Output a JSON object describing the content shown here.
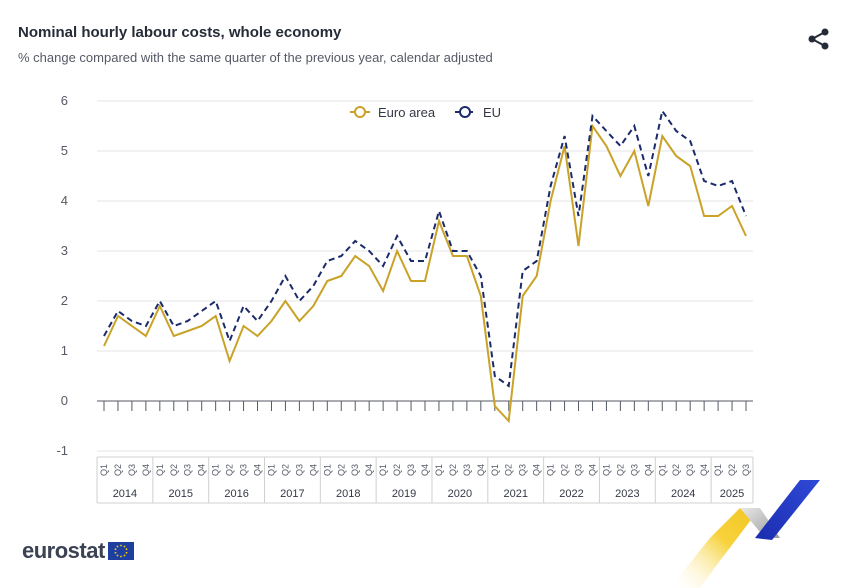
{
  "header": {
    "title": "Nominal hourly labour costs, whole economy",
    "subtitle": "% change compared with the same quarter of the previous year, calendar adjusted",
    "share_icon": "share-icon"
  },
  "brand": {
    "name": "eurostat",
    "flag_icon": "eu-flag-icon",
    "deco_icon": "eurostat-chevron-graphic"
  },
  "colors": {
    "euro_area": "#c9a227",
    "eu": "#1b2a6b",
    "grid": "#e6e6e6",
    "axis": "#555a66"
  },
  "chart_data": {
    "type": "line",
    "title": "Nominal hourly labour costs, whole economy",
    "subtitle": "% change compared with the same quarter of the previous year, calendar adjusted",
    "xlabel": "",
    "ylabel": "",
    "ylim": [
      -1,
      6
    ],
    "yticks": [
      "6",
      "5",
      "4",
      "3",
      "2",
      "1",
      "0",
      "-1"
    ],
    "grid": true,
    "legend_position": "top-center",
    "years": [
      "2014",
      "2015",
      "2016",
      "2017",
      "2018",
      "2019",
      "2020",
      "2021",
      "2022",
      "2023",
      "2024",
      "2025"
    ],
    "quarter_labels": [
      "Q1",
      "Q2",
      "Q3",
      "Q4"
    ],
    "categories": [
      "2014Q1",
      "2014Q2",
      "2014Q3",
      "2014Q4",
      "2015Q1",
      "2015Q2",
      "2015Q3",
      "2015Q4",
      "2016Q1",
      "2016Q2",
      "2016Q3",
      "2016Q4",
      "2017Q1",
      "2017Q2",
      "2017Q3",
      "2017Q4",
      "2018Q1",
      "2018Q2",
      "2018Q3",
      "2018Q4",
      "2019Q1",
      "2019Q2",
      "2019Q3",
      "2019Q4",
      "2020Q1",
      "2020Q2",
      "2020Q3",
      "2020Q4",
      "2021Q1",
      "2021Q2",
      "2021Q3",
      "2021Q4",
      "2022Q1",
      "2022Q2",
      "2022Q3",
      "2022Q4",
      "2023Q1",
      "2023Q2",
      "2023Q3",
      "2023Q4",
      "2024Q1",
      "2024Q2",
      "2024Q3",
      "2024Q4",
      "2025Q1",
      "2025Q2",
      "2025Q3"
    ],
    "series": [
      {
        "name": "Euro area",
        "values": [
          1.1,
          1.7,
          1.5,
          1.3,
          1.9,
          1.3,
          1.4,
          1.5,
          1.7,
          0.8,
          1.5,
          1.3,
          1.6,
          2.0,
          1.6,
          1.9,
          2.4,
          2.5,
          2.9,
          2.7,
          2.2,
          3.0,
          2.4,
          2.4,
          3.6,
          2.9,
          2.9,
          2.1,
          -0.1,
          -0.4,
          2.1,
          2.5,
          4.0,
          5.1,
          3.1,
          5.5,
          5.1,
          4.5,
          5.0,
          3.9,
          5.3,
          4.9,
          4.7,
          3.7,
          3.7,
          3.9,
          3.3
        ]
      },
      {
        "name": "EU",
        "values": [
          1.3,
          1.8,
          1.6,
          1.5,
          2.0,
          1.5,
          1.6,
          1.8,
          2.0,
          1.2,
          1.9,
          1.6,
          2.0,
          2.5,
          2.0,
          2.3,
          2.8,
          2.9,
          3.2,
          3.0,
          2.7,
          3.3,
          2.8,
          2.8,
          3.8,
          3.0,
          3.0,
          2.5,
          0.5,
          0.3,
          2.6,
          2.8,
          4.3,
          5.3,
          3.7,
          5.7,
          5.4,
          5.1,
          5.5,
          4.5,
          5.8,
          5.4,
          5.2,
          4.4,
          4.3,
          4.4,
          3.7
        ]
      }
    ]
  }
}
